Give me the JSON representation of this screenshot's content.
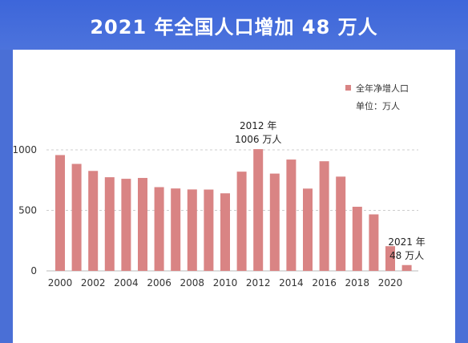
{
  "title": "2021 年全国人口增加 48 万人",
  "colors": {
    "header": "#4a6fd6",
    "bar": "#d98484"
  },
  "chart_data": {
    "type": "bar",
    "categories": [
      "2000",
      "2001",
      "2002",
      "2003",
      "2004",
      "2005",
      "2006",
      "2007",
      "2008",
      "2009",
      "2010",
      "2011",
      "2012",
      "2013",
      "2014",
      "2015",
      "2016",
      "2017",
      "2018",
      "2019",
      "2020",
      "2021"
    ],
    "values": [
      957,
      884,
      826,
      774,
      761,
      768,
      692,
      681,
      673,
      672,
      641,
      820,
      1006,
      804,
      920,
      680,
      906,
      779,
      530,
      467,
      204,
      48
    ],
    "xtick_labels": [
      "2000",
      "2002",
      "2004",
      "2006",
      "2008",
      "2010",
      "2012",
      "2014",
      "2016",
      "2018",
      "2020"
    ],
    "yticks": [
      0,
      500,
      1000
    ],
    "ylim": [
      0,
      1150
    ],
    "legend": {
      "label": "全年净增人口",
      "unit": "单位：万人",
      "position": "top-right"
    },
    "annotations": [
      {
        "category": "2012",
        "lines": [
          "2012 年",
          "1006 万人"
        ]
      },
      {
        "category": "2021",
        "lines": [
          "2021 年",
          "48 万人"
        ]
      }
    ],
    "grid": "dashed horizontal at ticks"
  }
}
